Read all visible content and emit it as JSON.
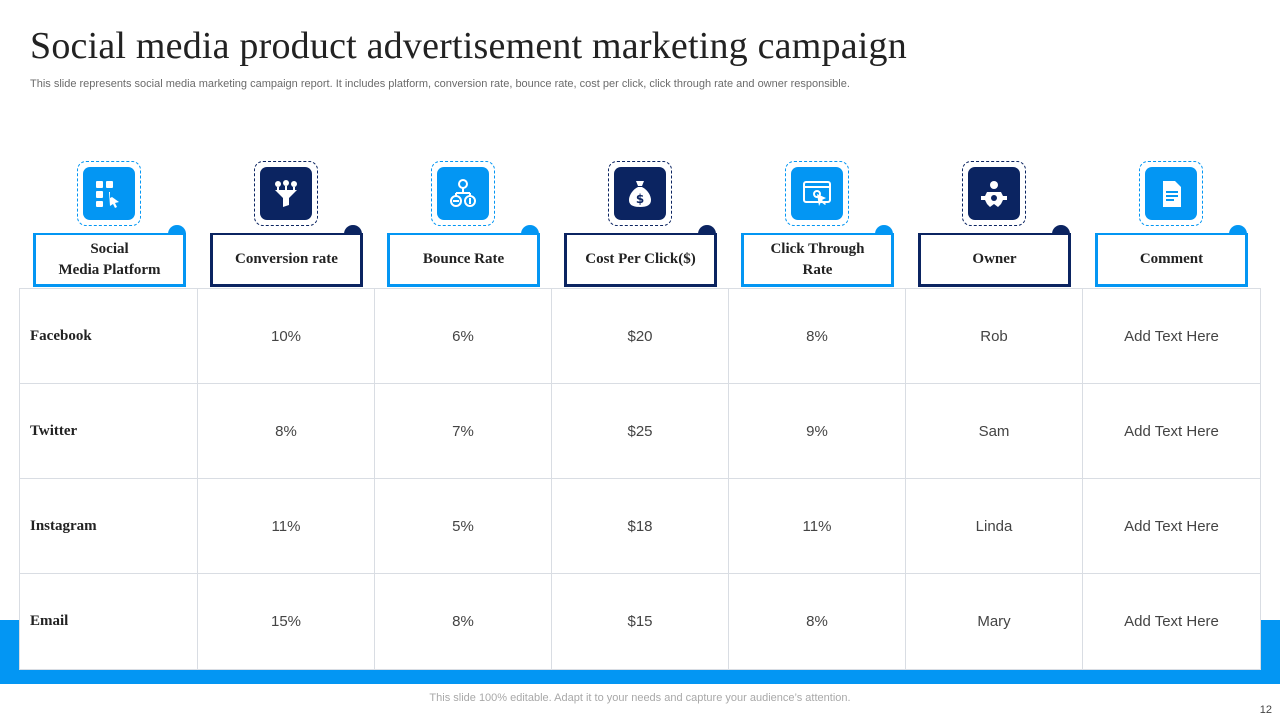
{
  "title": "Social media product advertisement marketing campaign",
  "subtitle": "This slide represents social media marketing campaign report. It includes platform, conversion rate, bounce rate, cost per click, click through rate and owner responsible.",
  "columns": [
    {
      "label_lines": [
        "Social",
        "Media Platform"
      ],
      "icon": "app-touch-icon",
      "theme": "light"
    },
    {
      "label_lines": [
        "Conversion rate"
      ],
      "icon": "funnel-icon",
      "theme": "dark"
    },
    {
      "label_lines": [
        "Bounce Rate"
      ],
      "icon": "user-money-flow-icon",
      "theme": "light"
    },
    {
      "label_lines": [
        "Cost Per Click($)"
      ],
      "icon": "money-bag-icon",
      "theme": "dark"
    },
    {
      "label_lines": [
        "Click Through",
        "Rate"
      ],
      "icon": "browser-click-icon",
      "theme": "light"
    },
    {
      "label_lines": [
        "Owner"
      ],
      "icon": "person-gear-icon",
      "theme": "dark"
    },
    {
      "label_lines": [
        "Comment"
      ],
      "icon": "document-icon",
      "theme": "light"
    }
  ],
  "rows": [
    [
      "Facebook",
      "10%",
      "6%",
      "$20",
      "8%",
      "Rob",
      "Add Text Here"
    ],
    [
      "Twitter",
      "8%",
      "7%",
      "$25",
      "9%",
      "Sam",
      "Add Text Here"
    ],
    [
      "Instagram",
      "11%",
      "5%",
      "$18",
      "11%",
      "Linda",
      "Add Text Here"
    ],
    [
      "Email",
      "15%",
      "8%",
      "$15",
      "8%",
      "Mary",
      "Add Text Here"
    ]
  ],
  "footer_note": "This slide 100% editable. Adapt it to your needs and capture your audience’s attention.",
  "page_number": "12",
  "colors": {
    "accent_light": "#0396f3",
    "accent_dark": "#0b2461"
  }
}
